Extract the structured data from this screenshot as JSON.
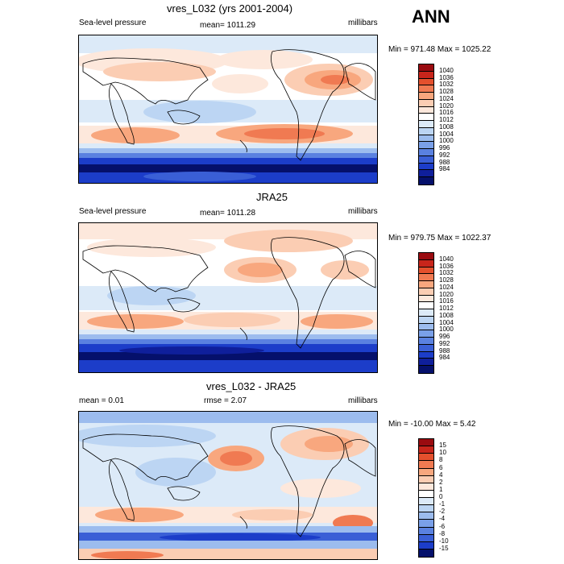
{
  "season": "ANN",
  "palette": {
    "red6": "#9a0b10",
    "red5": "#c8251b",
    "red4": "#e4502d",
    "red3": "#f07a52",
    "red2": "#f8a77e",
    "red1": "#fbcdb3",
    "red0": "#fde8dc",
    "white": "#ffffff",
    "blue0": "#dceaf8",
    "blue1": "#bcd5f3",
    "blue2": "#9cbcee",
    "blue3": "#7aa0e8",
    "blue4": "#5a81e0",
    "blue5": "#3a5fd6",
    "blue6": "#1c3dc9",
    "blue7": "#0f1f9b",
    "blue8": "#05106b"
  },
  "panels": [
    {
      "title": "vres_L032 (yrs 2001-2004)",
      "left_label": "Sea-level pressure",
      "mid_label": "mean= 1011.29",
      "right_label": "millibars",
      "minmax": "Min = 971.48 Max = 1025.22",
      "levels": [
        "1040",
        "1036",
        "1032",
        "1028",
        "1024",
        "1020",
        "1016",
        "1012",
        "1008",
        "1004",
        "1000",
        "996",
        "992",
        "988",
        "984"
      ]
    },
    {
      "title": "JRA25",
      "left_label": "Sea-level pressure",
      "mid_label": "mean= 1011.28",
      "right_label": "millibars",
      "minmax": "Min = 979.75 Max = 1022.37",
      "levels": [
        "1040",
        "1036",
        "1032",
        "1028",
        "1024",
        "1020",
        "1016",
        "1012",
        "1008",
        "1004",
        "1000",
        "996",
        "992",
        "988",
        "984"
      ]
    },
    {
      "title": "vres_L032 - JRA25",
      "left_label": "mean =   0.01",
      "mid_label": "rmse =   2.07",
      "right_label": "millibars",
      "minmax": "Min = -10.00 Max =   5.42",
      "levels": [
        "15",
        "10",
        "8",
        "6",
        "4",
        "2",
        "1",
        "0",
        "-1",
        "-2",
        "-4",
        "-6",
        "-8",
        "-10",
        "-15"
      ]
    }
  ]
}
